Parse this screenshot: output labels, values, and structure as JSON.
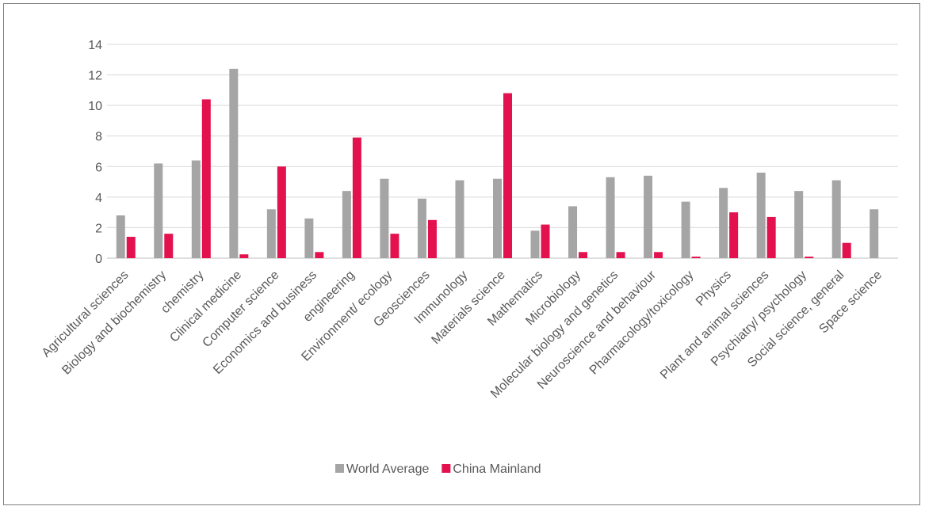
{
  "chart_data": {
    "type": "bar",
    "title": "",
    "xlabel": "",
    "ylabel": "",
    "ylim": [
      0,
      14
    ],
    "yticks": [
      0,
      2,
      4,
      6,
      8,
      10,
      12,
      14
    ],
    "grid": true,
    "legend_position": "bottom",
    "categories": [
      "Agricultural sciences",
      "Biology and biochemistry",
      "chemistry",
      "Clinical medicine",
      "Computer science",
      "Economics and business",
      "engineering",
      "Environment/ ecology",
      "Geosciences",
      "Immunology",
      "Materials science",
      "Mathematics",
      "Microbiology",
      "Molecular biology and genetics",
      "Neuroscience and behaviour",
      "Pharmacology/toxicology",
      "Physics",
      "Plant and animal sciences",
      "Psychiatry/ psychology",
      "Social science, general",
      "Space science"
    ],
    "series": [
      {
        "name": "World Average",
        "color": "#a5a5a5",
        "values": [
          2.8,
          6.2,
          6.4,
          12.4,
          3.2,
          2.6,
          4.4,
          5.2,
          3.9,
          5.1,
          5.2,
          1.8,
          3.4,
          5.3,
          5.4,
          3.7,
          4.6,
          5.6,
          4.4,
          5.1,
          3.2
        ]
      },
      {
        "name": "China Mainland",
        "color": "#e3114d",
        "values": [
          1.4,
          1.6,
          10.4,
          0.25,
          6.0,
          0.4,
          7.9,
          1.6,
          2.5,
          0,
          10.8,
          2.2,
          0.4,
          0.4,
          0.4,
          0.1,
          3.0,
          2.7,
          0.1,
          1.0,
          0
        ]
      }
    ]
  }
}
